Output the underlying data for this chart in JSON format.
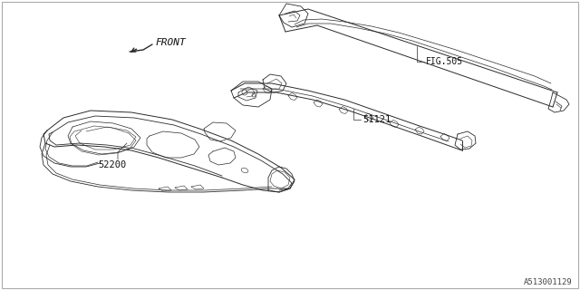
{
  "background_color": "#ffffff",
  "border_color": "#aaaaaa",
  "fig_ref": "FIG.505",
  "part_51121": "51121",
  "part_52200": "52200",
  "diagram_id": "A513001129",
  "front_label": "FRONT",
  "line_color": "#2a2a2a",
  "label_color": "#111111",
  "font_size_label": 7.5,
  "font_size_id": 6.5
}
